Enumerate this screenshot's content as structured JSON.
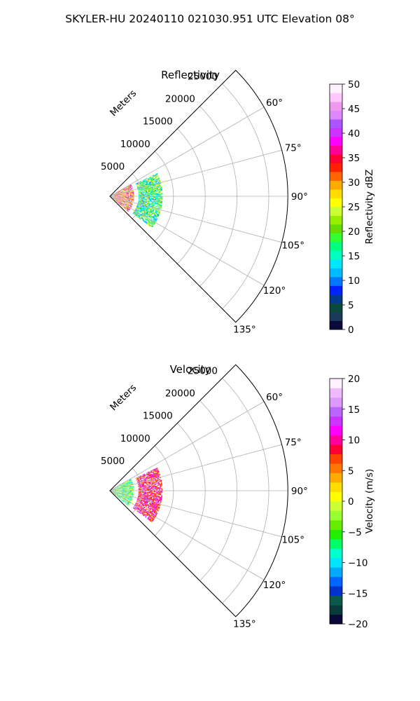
{
  "figure": {
    "suptitle": "SKYLER-HU  20240110  021030.951 UTC Elevation 08°"
  },
  "chart_data": [
    {
      "type": "heatmap",
      "subtype": "polar-sector (PPI radar scan)",
      "title": "Reflectivity",
      "radial_label": "Meters",
      "radial_ticks": [
        5000,
        10000,
        15000,
        20000,
        25000
      ],
      "radial_tick_labels": [
        "5000",
        "10000",
        "15000",
        "20000",
        "25000"
      ],
      "rlim": [
        0,
        28000
      ],
      "theta_ticks": [
        60,
        75,
        90,
        105,
        120,
        135
      ],
      "theta_tick_labels": [
        "60°",
        "75°",
        "90°",
        "105°",
        "120°",
        "135°"
      ],
      "theta_range_deg": [
        45,
        135
      ],
      "grid": true,
      "colorbar": {
        "label": "Reflectivity dBZ",
        "vmin": 0,
        "vmax": 50,
        "ticks": [
          0,
          5,
          10,
          15,
          20,
          25,
          30,
          35,
          40,
          45,
          50
        ],
        "tick_labels": [
          "0",
          "5",
          "10",
          "15",
          "20",
          "25",
          "30",
          "35",
          "40",
          "45",
          "50"
        ]
      },
      "echo_regions": [
        {
          "az_range": [
            60,
            130
          ],
          "r_range": [
            600,
            3800
          ],
          "value_range": [
            22,
            42
          ]
        },
        {
          "az_range": [
            64,
            127
          ],
          "r_range": [
            4500,
            8200
          ],
          "value_range": [
            10,
            25
          ]
        }
      ]
    },
    {
      "type": "heatmap",
      "subtype": "polar-sector (PPI radar scan)",
      "title": "Velocity",
      "radial_label": "Meters",
      "radial_ticks": [
        5000,
        10000,
        15000,
        20000,
        25000
      ],
      "radial_tick_labels": [
        "5000",
        "10000",
        "15000",
        "20000",
        "25000"
      ],
      "rlim": [
        0,
        28000
      ],
      "theta_ticks": [
        60,
        75,
        90,
        105,
        120,
        135
      ],
      "theta_tick_labels": [
        "60°",
        "75°",
        "90°",
        "105°",
        "120°",
        "135°"
      ],
      "theta_range_deg": [
        45,
        135
      ],
      "grid": true,
      "colorbar": {
        "label": "Velocity (m/s)",
        "vmin": -20,
        "vmax": 20,
        "ticks": [
          -20,
          -15,
          -10,
          -5,
          0,
          5,
          10,
          15,
          20
        ],
        "tick_labels": [
          "−20",
          "−15",
          "−10",
          "−5",
          "0",
          "5",
          "10",
          "15",
          "20"
        ]
      },
      "echo_regions": [
        {
          "az_range": [
            60,
            130
          ],
          "r_range": [
            600,
            3800
          ],
          "value_range": [
            -12,
            2
          ]
        },
        {
          "az_range": [
            64,
            127
          ],
          "r_range": [
            4500,
            8200
          ],
          "value_range": [
            4,
            14
          ]
        }
      ]
    }
  ],
  "colormaps": {
    "reflectivity": [
      "#0a0a3a",
      "#1a3a5a",
      "#0a4a3a",
      "#003a90",
      "#0022ff",
      "#0077ff",
      "#00bbff",
      "#00e6ff",
      "#00ffc0",
      "#00ff80",
      "#33ff33",
      "#66dd00",
      "#99ee00",
      "#ccff33",
      "#ffff00",
      "#ffdd00",
      "#ffaa00",
      "#ff6600",
      "#ff2200",
      "#ff0033",
      "#ff0099",
      "#ff00ff",
      "#cc33ff",
      "#aa55ff",
      "#dd88ff",
      "#ee99ee",
      "#ffc8ff",
      "#fff0ff"
    ],
    "velocity": [
      "#0a0a3a",
      "#0a3a3a",
      "#0a5a4a",
      "#0033cc",
      "#0066ff",
      "#00aaff",
      "#00e6ff",
      "#00ffcc",
      "#00ff66",
      "#22ee00",
      "#66ee00",
      "#99ff33",
      "#ccff33",
      "#ffff00",
      "#ffdd00",
      "#ffaa00",
      "#ff7700",
      "#ff4400",
      "#ff0033",
      "#ff0099",
      "#ff00ff",
      "#cc33ff",
      "#bb66ff",
      "#dd99ff",
      "#eebbff",
      "#fff0ff"
    ]
  }
}
